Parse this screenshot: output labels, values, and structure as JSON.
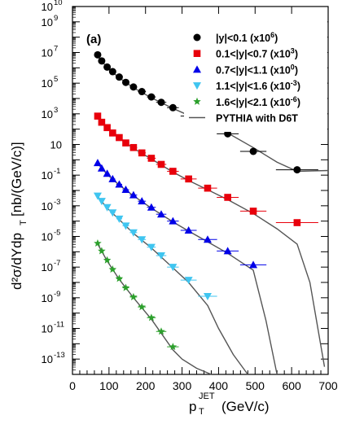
{
  "chart_data": {
    "type": "scatter",
    "panel_label": "(a)",
    "xlabel_main": "p",
    "xlabel_sub": "T",
    "xlabel_sup": "JET",
    "xlabel_unit": "(GeV/c)",
    "ylabel_main": "d²σ/dYdp",
    "ylabel_sub": "T",
    "ylabel_unit": "[nb/(GeV/c)]",
    "xlim": [
      0,
      700
    ],
    "ylog": true,
    "ylim_log10": [
      -14,
      10
    ],
    "x_ticks": [
      0,
      100,
      200,
      300,
      400,
      500,
      600,
      700
    ],
    "y_ticks": [
      {
        "exp": 10,
        "label": "10",
        "sup": "10"
      },
      {
        "exp": 9,
        "label": "10",
        "sup": "9"
      },
      {
        "exp": 7,
        "label": "10",
        "sup": "7"
      },
      {
        "exp": 5,
        "label": "10",
        "sup": "5"
      },
      {
        "exp": 3,
        "label": "10",
        "sup": "3"
      },
      {
        "exp": 1,
        "label": "10",
        "sup": ""
      },
      {
        "exp": -1,
        "label": "10",
        "sup": "-1"
      },
      {
        "exp": -3,
        "label": "10",
        "sup": "-3"
      },
      {
        "exp": -5,
        "label": "10",
        "sup": "-5"
      },
      {
        "exp": -7,
        "label": "10",
        "sup": "-7"
      },
      {
        "exp": -9,
        "label": "10",
        "sup": "-9"
      },
      {
        "exp": -11,
        "label": "10",
        "sup": "-11"
      },
      {
        "exp": -13,
        "label": "10",
        "sup": "-13"
      }
    ],
    "series": [
      {
        "name": "|y|<0.1",
        "scale": "6",
        "marker": "circle",
        "color": "#000000",
        "x": [
          69,
          80,
          95,
          110,
          128,
          146,
          167,
          190,
          216,
          243,
          275,
          318,
          370,
          425,
          495,
          615
        ],
        "y_log10": [
          6.85,
          6.45,
          6.05,
          5.75,
          5.4,
          5.05,
          4.75,
          4.45,
          4.1,
          3.75,
          3.4,
          2.85,
          2.45,
          1.7,
          0.55,
          -0.65
        ],
        "xerr": [
          4,
          5,
          6,
          7,
          8,
          9,
          10,
          11,
          12,
          14,
          16,
          22,
          26,
          30,
          36,
          58
        ]
      },
      {
        "name": "0.1<|y|<0.7",
        "scale": "3",
        "marker": "square",
        "color": "#e8000b",
        "x": [
          69,
          80,
          95,
          110,
          128,
          146,
          167,
          190,
          216,
          243,
          275,
          318,
          370,
          425,
          495,
          615
        ],
        "y_log10": [
          2.85,
          2.45,
          2.1,
          1.75,
          1.45,
          1.1,
          0.8,
          0.45,
          0.1,
          -0.3,
          -0.75,
          -1.25,
          -1.85,
          -2.45,
          -3.35,
          -4.1
        ],
        "xerr": [
          4,
          5,
          6,
          7,
          8,
          9,
          10,
          11,
          12,
          14,
          16,
          22,
          26,
          30,
          36,
          58
        ]
      },
      {
        "name": "0.7<|y|<1.1",
        "scale": "0",
        "marker": "triangle-up",
        "color": "#0000e8",
        "x": [
          69,
          80,
          95,
          110,
          128,
          146,
          167,
          190,
          216,
          243,
          275,
          318,
          370,
          425,
          495
        ],
        "y_log10": [
          -0.2,
          -0.55,
          -0.9,
          -1.25,
          -1.6,
          -1.95,
          -2.3,
          -2.7,
          -3.1,
          -3.55,
          -4.0,
          -4.6,
          -5.2,
          -5.95,
          -6.85
        ],
        "xerr": [
          4,
          5,
          6,
          7,
          8,
          9,
          10,
          11,
          12,
          14,
          16,
          22,
          26,
          30,
          36
        ]
      },
      {
        "name": "1.1<|y|<1.6",
        "scale": "-3",
        "marker": "triangle-down",
        "color": "#3fc5f0",
        "x": [
          69,
          80,
          95,
          110,
          128,
          146,
          167,
          190,
          216,
          243,
          275,
          318,
          370
        ],
        "y_log10": [
          -2.35,
          -2.7,
          -3.1,
          -3.45,
          -3.85,
          -4.3,
          -4.75,
          -5.2,
          -5.7,
          -6.25,
          -7.0,
          -7.85,
          -8.9
        ],
        "xerr": [
          4,
          5,
          6,
          7,
          8,
          9,
          10,
          11,
          12,
          14,
          16,
          22,
          26
        ]
      },
      {
        "name": "1.6<|y|<2.1",
        "scale": "-6",
        "marker": "star",
        "color": "#2ca02c",
        "x": [
          69,
          80,
          95,
          110,
          128,
          146,
          167,
          190,
          216,
          243,
          275
        ],
        "y_log10": [
          -5.45,
          -5.95,
          -6.55,
          -7.15,
          -7.75,
          -8.35,
          -8.95,
          -9.6,
          -10.3,
          -11.2,
          -12.2
        ],
        "xerr": [
          4,
          5,
          6,
          7,
          8,
          9,
          10,
          11,
          12,
          14,
          16
        ]
      }
    ],
    "theory": {
      "name": "PYTHIA with D6T",
      "color": "#555555",
      "curves": [
        {
          "x": [
            69,
            95,
            128,
            167,
            216,
            275,
            318,
            370,
            425,
            495,
            560,
            615,
            700
          ],
          "y_log10": [
            6.8,
            6.0,
            5.35,
            4.7,
            4.05,
            3.35,
            2.9,
            2.35,
            1.75,
            0.8,
            -0.15,
            -0.75,
            -0.7
          ]
        },
        {
          "x": [
            69,
            95,
            128,
            167,
            216,
            275,
            318,
            370,
            425,
            495,
            560,
            615,
            650,
            690
          ],
          "y_log10": [
            2.8,
            2.05,
            1.4,
            0.75,
            0.05,
            -0.8,
            -1.35,
            -1.95,
            -2.6,
            -3.5,
            -4.5,
            -5.5,
            -8.0,
            -13.5
          ]
        },
        {
          "x": [
            69,
            95,
            128,
            167,
            216,
            275,
            318,
            370,
            425,
            495,
            530,
            560
          ],
          "y_log10": [
            -0.25,
            -0.95,
            -1.65,
            -2.35,
            -3.15,
            -4.05,
            -4.65,
            -5.35,
            -6.1,
            -7.2,
            -10.5,
            -14
          ]
        },
        {
          "x": [
            69,
            95,
            128,
            167,
            216,
            275,
            318,
            370,
            400,
            440,
            480
          ],
          "y_log10": [
            -2.4,
            -3.15,
            -3.9,
            -4.8,
            -5.75,
            -7.05,
            -8.0,
            -9.5,
            -11.0,
            -12.7,
            -14
          ]
        },
        {
          "x": [
            69,
            95,
            128,
            167,
            216,
            275,
            300,
            340,
            380
          ],
          "y_log10": [
            -5.5,
            -6.6,
            -7.8,
            -9.0,
            -10.4,
            -12.4,
            -13.0,
            -13.6,
            -14
          ]
        }
      ]
    },
    "legend": {
      "position": "top-right",
      "entries": [
        {
          "label": "|y|<0.1 (x10",
          "sup": "6",
          "close": ")",
          "marker": "circle",
          "color": "#000000"
        },
        {
          "label": "0.1<|y|<0.7 (x10",
          "sup": "3",
          "close": ")",
          "marker": "square",
          "color": "#e8000b"
        },
        {
          "label": "0.7<|y|<1.1 (x10",
          "sup": "0",
          "close": ")",
          "marker": "triangle-up",
          "color": "#0000e8"
        },
        {
          "label": "1.1<|y|<1.6 (x10",
          "sup": "-3",
          "close": ")",
          "marker": "triangle-down",
          "color": "#3fc5f0"
        },
        {
          "label": "1.6<|y|<2.1 (x10",
          "sup": "-6",
          "close": ")",
          "marker": "star",
          "color": "#2ca02c"
        },
        {
          "label": "PYTHIA with D6T",
          "sup": "",
          "close": "",
          "marker": "line",
          "color": "#555555"
        }
      ]
    }
  }
}
